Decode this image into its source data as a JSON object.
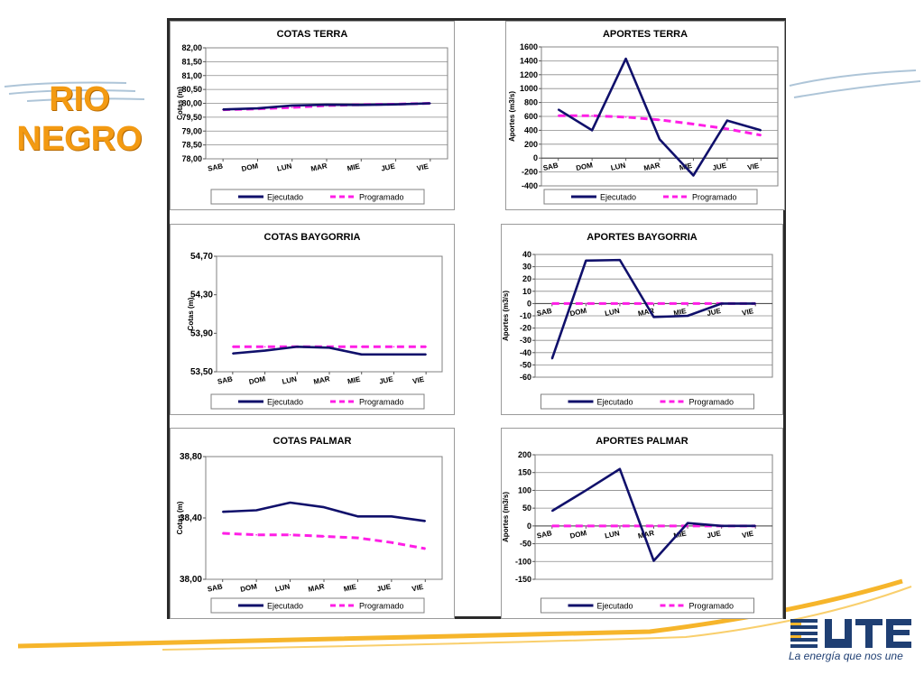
{
  "slide": {
    "title_line1": "RIO",
    "title_line2": "NEGRO",
    "colors": {
      "title": "#f39a12",
      "decor": "#f6b52b",
      "decor_blue": "#9ab7cf"
    }
  },
  "brand": {
    "name": "UTE",
    "tagline": "La energía que nos une",
    "icon": "ute-logo"
  },
  "series_style": {
    "Ejecutado": {
      "color": "#10106b",
      "dash": ""
    },
    "Programado": {
      "color": "#ff1ee6",
      "dash": "8,5"
    }
  },
  "chart_data": [
    {
      "id": "cotas-terra",
      "type": "line",
      "title": "COTAS TERRA",
      "ylabel": "Cotas (m)",
      "xlabel": "",
      "categories": [
        "SAB",
        "DOM",
        "LUN",
        "MAR",
        "MIE",
        "JUE",
        "VIE"
      ],
      "yticks": [
        "82,00",
        "81,50",
        "81,00",
        "80,50",
        "80,00",
        "79,50",
        "79,00",
        "78,50",
        "78,00"
      ],
      "ylim": [
        78,
        82
      ],
      "grid": true,
      "legend": "bottom",
      "series": [
        {
          "name": "Ejecutado",
          "values": [
            79.78,
            79.82,
            79.92,
            79.95,
            79.94,
            79.96,
            80.0
          ]
        },
        {
          "name": "Programado",
          "values": [
            79.77,
            79.8,
            79.85,
            79.92,
            79.95,
            79.97,
            80.0
          ]
        }
      ]
    },
    {
      "id": "aportes-terra",
      "type": "line",
      "title": "APORTES TERRA",
      "ylabel": "Aportes (m3/s)",
      "xlabel": "",
      "categories": [
        "SAB",
        "DOM",
        "LUN",
        "MAR",
        "MIE",
        "JUE",
        "VIE"
      ],
      "yticks": [
        "1600",
        "1400",
        "1200",
        "1000",
        "800",
        "600",
        "400",
        "200",
        "0",
        "-200",
        "-400"
      ],
      "ylim": [
        -400,
        1600
      ],
      "grid": true,
      "legend": "bottom",
      "series": [
        {
          "name": "Ejecutado",
          "values": [
            700,
            400,
            1430,
            270,
            -250,
            540,
            400
          ]
        },
        {
          "name": "Programado",
          "values": [
            610,
            610,
            590,
            550,
            490,
            420,
            330
          ]
        }
      ]
    },
    {
      "id": "cotas-baygorria",
      "type": "line",
      "title": "COTAS BAYGORRIA",
      "ylabel": "Cotas (m)",
      "xlabel": "",
      "categories": [
        "SAB",
        "DOM",
        "LUN",
        "MAR",
        "MIE",
        "JUE",
        "VIE"
      ],
      "yticks": [
        "54,70",
        "54,30",
        "53,90",
        "53,50"
      ],
      "ylim": [
        53.5,
        54.7
      ],
      "grid": false,
      "legend": "bottom",
      "series": [
        {
          "name": "Ejecutado",
          "values": [
            53.69,
            53.72,
            53.76,
            53.75,
            53.68,
            53.68,
            53.68
          ]
        },
        {
          "name": "Programado",
          "values": [
            53.76,
            53.76,
            53.76,
            53.76,
            53.76,
            53.76,
            53.76
          ]
        }
      ]
    },
    {
      "id": "aportes-baygorria",
      "type": "line",
      "title": "APORTES BAYGORRIA",
      "ylabel": "Aportes (m3/s)",
      "xlabel": "",
      "categories": [
        "SAB",
        "DOM",
        "LUN",
        "MAR",
        "MIE",
        "JUE",
        "VIE"
      ],
      "yticks": [
        "40",
        "30",
        "20",
        "10",
        "0",
        "-10",
        "-20",
        "-30",
        "-40",
        "-50",
        "-60"
      ],
      "ylim": [
        -60,
        40
      ],
      "grid": true,
      "legend": "bottom",
      "series": [
        {
          "name": "Ejecutado",
          "values": [
            -45,
            35,
            35.5,
            -11,
            -10,
            0,
            0
          ]
        },
        {
          "name": "Programado",
          "values": [
            0,
            0,
            0,
            0,
            0,
            0,
            0
          ]
        }
      ]
    },
    {
      "id": "cotas-palmar",
      "type": "line",
      "title": "COTAS PALMAR",
      "ylabel": "Cotas (m)",
      "xlabel": "",
      "categories": [
        "SAB",
        "DOM",
        "LUN",
        "MAR",
        "MIE",
        "JUE",
        "VIE"
      ],
      "yticks": [
        "38,80",
        "38,40",
        "38,00"
      ],
      "ylim": [
        38.0,
        38.8
      ],
      "grid": false,
      "legend": "bottom",
      "series": [
        {
          "name": "Ejecutado",
          "values": [
            38.44,
            38.45,
            38.5,
            38.47,
            38.41,
            38.41,
            38.38
          ]
        },
        {
          "name": "Programado",
          "values": [
            38.3,
            38.29,
            38.29,
            38.28,
            38.27,
            38.24,
            38.2
          ]
        }
      ]
    },
    {
      "id": "aportes-palmar",
      "type": "line",
      "title": "APORTES PALMAR",
      "ylabel": "Aportes (m3/s)",
      "xlabel": "",
      "categories": [
        "SAB",
        "DOM",
        "LUN",
        "MAR",
        "MIE",
        "JUE",
        "VIE"
      ],
      "yticks": [
        "200",
        "150",
        "100",
        "50",
        "0",
        "-50",
        "-100",
        "-150"
      ],
      "ylim": [
        -150,
        200
      ],
      "grid": true,
      "legend": "bottom",
      "series": [
        {
          "name": "Ejecutado",
          "values": [
            42,
            100,
            160,
            -98,
            8,
            0,
            0
          ]
        },
        {
          "name": "Programado",
          "values": [
            0,
            0,
            0,
            0,
            0,
            0,
            0
          ]
        }
      ]
    }
  ]
}
